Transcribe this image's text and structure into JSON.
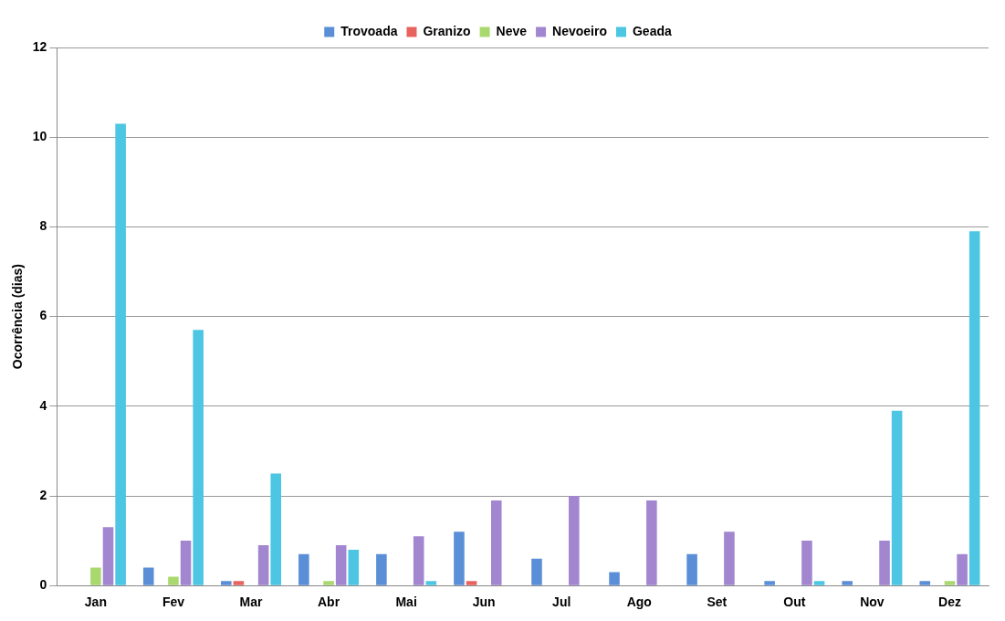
{
  "chart_data": {
    "type": "bar",
    "ylabel": "Ocorrência (dias)",
    "categories": [
      "Jan",
      "Fev",
      "Mar",
      "Abr",
      "Mai",
      "Jun",
      "Jul",
      "Ago",
      "Set",
      "Out",
      "Nov",
      "Dez"
    ],
    "series": [
      {
        "name": "Trovoada",
        "color": "#5a8ed6",
        "values": [
          0,
          0.4,
          0.1,
          0.7,
          0.7,
          1.2,
          0.6,
          0.3,
          0.7,
          0.1,
          0.1,
          0.1
        ]
      },
      {
        "name": "Granizo",
        "color": "#e8625e",
        "values": [
          0,
          0,
          0.1,
          0,
          0,
          0.1,
          0,
          0,
          0,
          0,
          0,
          0
        ]
      },
      {
        "name": "Neve",
        "color": "#a9d86e",
        "values": [
          0.4,
          0.2,
          0,
          0.1,
          0,
          0,
          0,
          0,
          0,
          0,
          0,
          0.1
        ]
      },
      {
        "name": "Nevoeiro",
        "color": "#a286d0",
        "values": [
          1.3,
          1.0,
          0.9,
          0.9,
          1.1,
          1.9,
          2.0,
          1.9,
          1.2,
          1.0,
          1.0,
          0.7
        ]
      },
      {
        "name": "Geada",
        "color": "#4cc6e2",
        "values": [
          10.3,
          5.7,
          2.5,
          0.8,
          0.1,
          0,
          0,
          0,
          0,
          0.1,
          3.9,
          7.9
        ]
      }
    ],
    "ylim": [
      0,
      12
    ],
    "yticks": [
      0,
      2,
      4,
      6,
      8,
      10,
      12
    ],
    "grid": "y",
    "legend": "top"
  }
}
